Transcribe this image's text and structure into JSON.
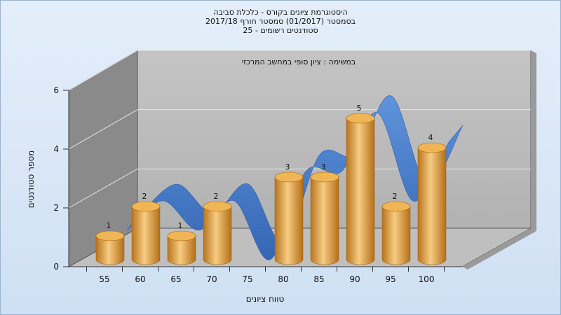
{
  "chart_data": {
    "type": "bar",
    "title_lines": [
      "היסטוגרמת ציונים בקורס - כלכלת סביבה",
      "בסמסטר  (01/2017)  סמסטר חורף 2017/18",
      "סטודנטים רשומים - 25"
    ],
    "subtitle": "במשימה : ציון סופי במחשב המרכזי",
    "xlabel": "טווח ציונים",
    "ylabel": "מספר סטודנטים",
    "categories": [
      "55",
      "60",
      "65",
      "70",
      "75",
      "80",
      "85",
      "90",
      "95",
      "100"
    ],
    "values": [
      1,
      2,
      1,
      2,
      0,
      3,
      3,
      5,
      2,
      4
    ],
    "data_labels": [
      "1",
      "2",
      "1",
      "2",
      "",
      "3",
      "3",
      "5",
      "2",
      "4"
    ],
    "y_ticks": [
      "0",
      "2",
      "4",
      "6"
    ],
    "ylim": [
      0,
      6
    ],
    "grid": true,
    "trend_line": true,
    "colors": {
      "bar": "#e8a840",
      "ribbon": "#3a74c8",
      "wall": "#bdbdbd",
      "side_wall": "#8a8a8a"
    }
  }
}
